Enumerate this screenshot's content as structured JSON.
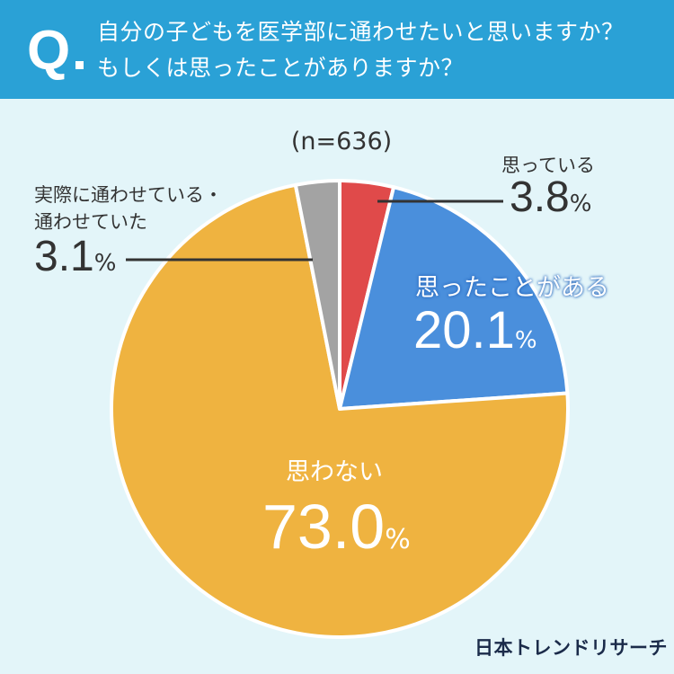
{
  "header": {
    "q_letter": "Q",
    "question_line1": "自分の子どもを医学部に通わせたいと思いますか？",
    "question_line2": "もしくは思ったことがありますか？"
  },
  "sample_size": "(n=636)",
  "slices": [
    {
      "label": "思っている",
      "value": "3.8",
      "unit": "%"
    },
    {
      "label": "思ったことがある",
      "value": "20.1",
      "unit": "%"
    },
    {
      "label": "思わない",
      "value": "73.0",
      "unit": "%"
    },
    {
      "label_line1": "実際に通わせている・",
      "label_line2": "通わせていた",
      "value": "3.1",
      "unit": "%"
    }
  ],
  "logo": "日本トレンドリサーチ",
  "colors": {
    "background": "#e3f5f9",
    "header": "#2aa1d6",
    "slice_1": "#e04a4a",
    "slice_2": "#4a8fdc",
    "slice_3": "#efb340",
    "slice_4": "#a3a3a3"
  },
  "chart_data": {
    "type": "pie",
    "title": "自分の子どもを医学部に通わせたいと思いますか？もしくは思ったことがありますか？",
    "categories": [
      "思っている",
      "思ったことがある",
      "思わない",
      "実際に通わせている・通わせていた"
    ],
    "values": [
      3.8,
      20.1,
      73.0,
      3.1
    ],
    "unit": "%",
    "n": 636
  }
}
